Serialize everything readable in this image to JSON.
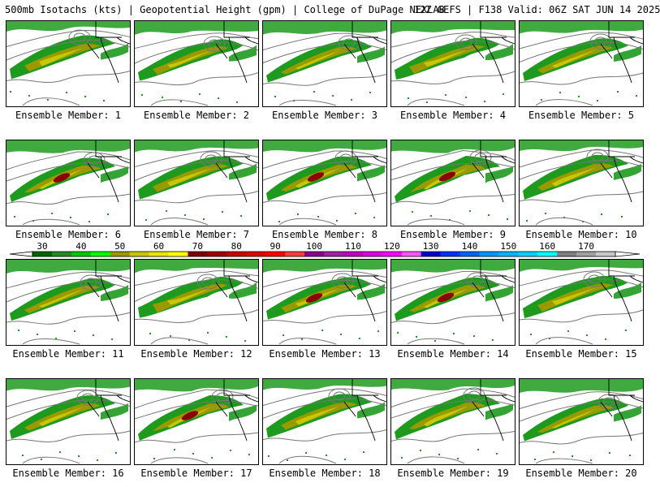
{
  "header": {
    "left": "500mb Isotachs (kts) | Geopotential Height (gpm) | College of DuPage NEXLAB",
    "right": "12Z GEFS | F138 Valid: 06Z SAT JUN 14 2025"
  },
  "members": [
    {
      "label": "Ensemble Member: 1"
    },
    {
      "label": "Ensemble Member: 2"
    },
    {
      "label": "Ensemble Member: 3"
    },
    {
      "label": "Ensemble Member: 4"
    },
    {
      "label": "Ensemble Member: 5"
    },
    {
      "label": "Ensemble Member: 6"
    },
    {
      "label": "Ensemble Member: 7"
    },
    {
      "label": "Ensemble Member: 8"
    },
    {
      "label": "Ensemble Member: 9"
    },
    {
      "label": "Ensemble Member: 10"
    },
    {
      "label": "Ensemble Member: 11"
    },
    {
      "label": "Ensemble Member: 12"
    },
    {
      "label": "Ensemble Member: 13"
    },
    {
      "label": "Ensemble Member: 14"
    },
    {
      "label": "Ensemble Member: 15"
    },
    {
      "label": "Ensemble Member: 16"
    },
    {
      "label": "Ensemble Member: 17"
    },
    {
      "label": "Ensemble Member: 18"
    },
    {
      "label": "Ensemble Member: 19"
    },
    {
      "label": "Ensemble Member: 20"
    }
  ],
  "colorbar": {
    "ticks": [
      "30",
      "40",
      "50",
      "60",
      "70",
      "80",
      "90",
      "100",
      "110",
      "120",
      "130",
      "140",
      "150",
      "160",
      "170"
    ],
    "colors": [
      "#006400",
      "#228b22",
      "#00c800",
      "#00ff00",
      "#9a9a00",
      "#c8c800",
      "#e6e600",
      "#ffff00",
      "#800000",
      "#a00000",
      "#c80000",
      "#e00000",
      "#ff0000",
      "#ff3c3c",
      "#8b008b",
      "#a020a0",
      "#c000c0",
      "#e000e0",
      "#ff00ff",
      "#ff55ff",
      "#0000c8",
      "#0032ff",
      "#0064ff",
      "#0096ff",
      "#00b4ff",
      "#00d2ff",
      "#00ffff",
      "#808080",
      "#a0a0a0",
      "#c8c8c8"
    ]
  },
  "colors": {
    "jet_outer": "#1e9a1e",
    "jet_mid": "#9a9a00",
    "jet_inner": "#c8c800",
    "jet_max": "#8b0000",
    "contour": "#777777",
    "coast": "#000000"
  }
}
